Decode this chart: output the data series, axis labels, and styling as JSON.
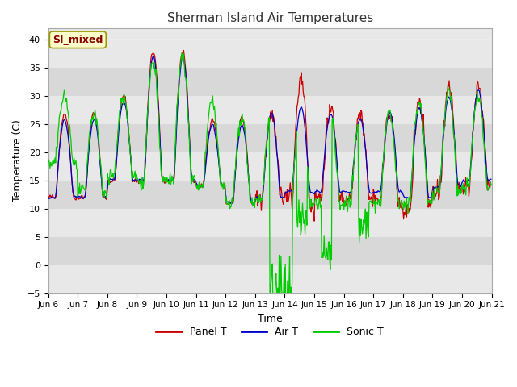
{
  "title": "Sherman Island Air Temperatures",
  "xlabel": "Time",
  "ylabel": "Temperature (C)",
  "ylim": [
    -5,
    42
  ],
  "yticks": [
    -5,
    0,
    5,
    10,
    15,
    20,
    25,
    30,
    35,
    40
  ],
  "xtick_labels": [
    "Jun 6",
    "Jun 7",
    "Jun 8",
    "Jun 9",
    "Jun 10",
    "Jun 11",
    "Jun 12",
    "Jun 13",
    "Jun 14",
    "Jun 15",
    "Jun 16",
    "Jun 17",
    "Jun 18",
    "Jun 19",
    "Jun 20",
    "Jun 21"
  ],
  "series_labels": [
    "Panel T",
    "Air T",
    "Sonic T"
  ],
  "series_colors": [
    "#cc0000",
    "#0000cc",
    "#00cc00"
  ],
  "annotation_box": "SI_mixed",
  "annotation_color": "#880000",
  "annotation_bg": "#ffffcc",
  "annotation_border": "#999900",
  "fig_bg": "#ffffff",
  "plot_bg": "#e8e8e8",
  "grid_color": "#ffffff",
  "band_color": "#d8d8d8"
}
